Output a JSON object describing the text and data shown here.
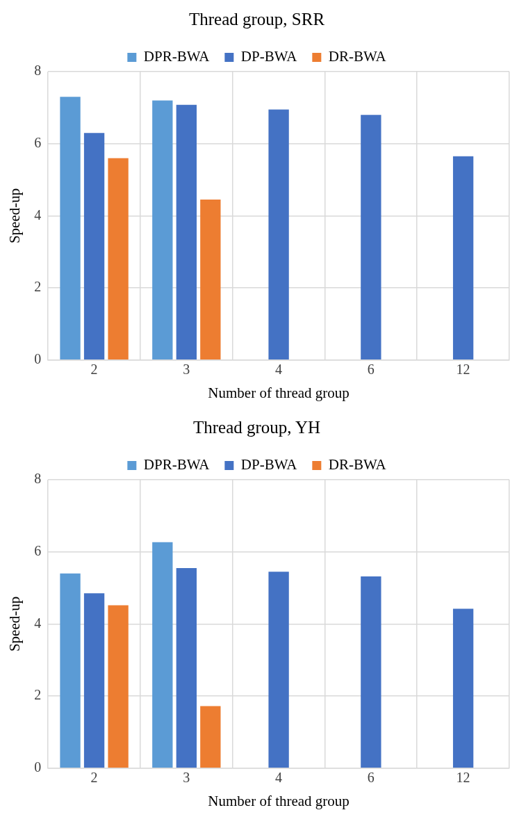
{
  "chart_data": [
    {
      "type": "bar",
      "title": "Thread group, SRR",
      "xlabel": "Number of thread group",
      "ylabel": "Speed-up",
      "categories": [
        "2",
        "3",
        "4",
        "6",
        "12"
      ],
      "series": [
        {
          "name": "DPR-BWA",
          "color": "#5b9bd5",
          "values": [
            7.3,
            7.2,
            null,
            null,
            null
          ]
        },
        {
          "name": "DP-BWA",
          "color": "#4472c4",
          "values": [
            6.3,
            7.08,
            6.95,
            6.8,
            5.65
          ]
        },
        {
          "name": "DR-BWA",
          "color": "#ed7d31",
          "values": [
            5.6,
            4.45,
            null,
            null,
            null
          ]
        }
      ],
      "ylim": [
        0,
        8
      ],
      "yticks": [
        0,
        2,
        4,
        6,
        8
      ],
      "grid": true,
      "legend": "top"
    },
    {
      "type": "bar",
      "title": "Thread group, YH",
      "xlabel": "Number of thread group",
      "ylabel": "Speed-up",
      "categories": [
        "2",
        "3",
        "4",
        "6",
        "12"
      ],
      "series": [
        {
          "name": "DPR-BWA",
          "color": "#5b9bd5",
          "values": [
            5.4,
            6.27,
            null,
            null,
            null
          ]
        },
        {
          "name": "DP-BWA",
          "color": "#4472c4",
          "values": [
            4.85,
            5.55,
            5.45,
            5.32,
            4.42
          ]
        },
        {
          "name": "DR-BWA",
          "color": "#ed7d31",
          "values": [
            4.52,
            1.72,
            null,
            null,
            null
          ]
        }
      ],
      "ylim": [
        0,
        8
      ],
      "yticks": [
        0,
        2,
        4,
        6,
        8
      ],
      "grid": true,
      "legend": "top"
    }
  ]
}
